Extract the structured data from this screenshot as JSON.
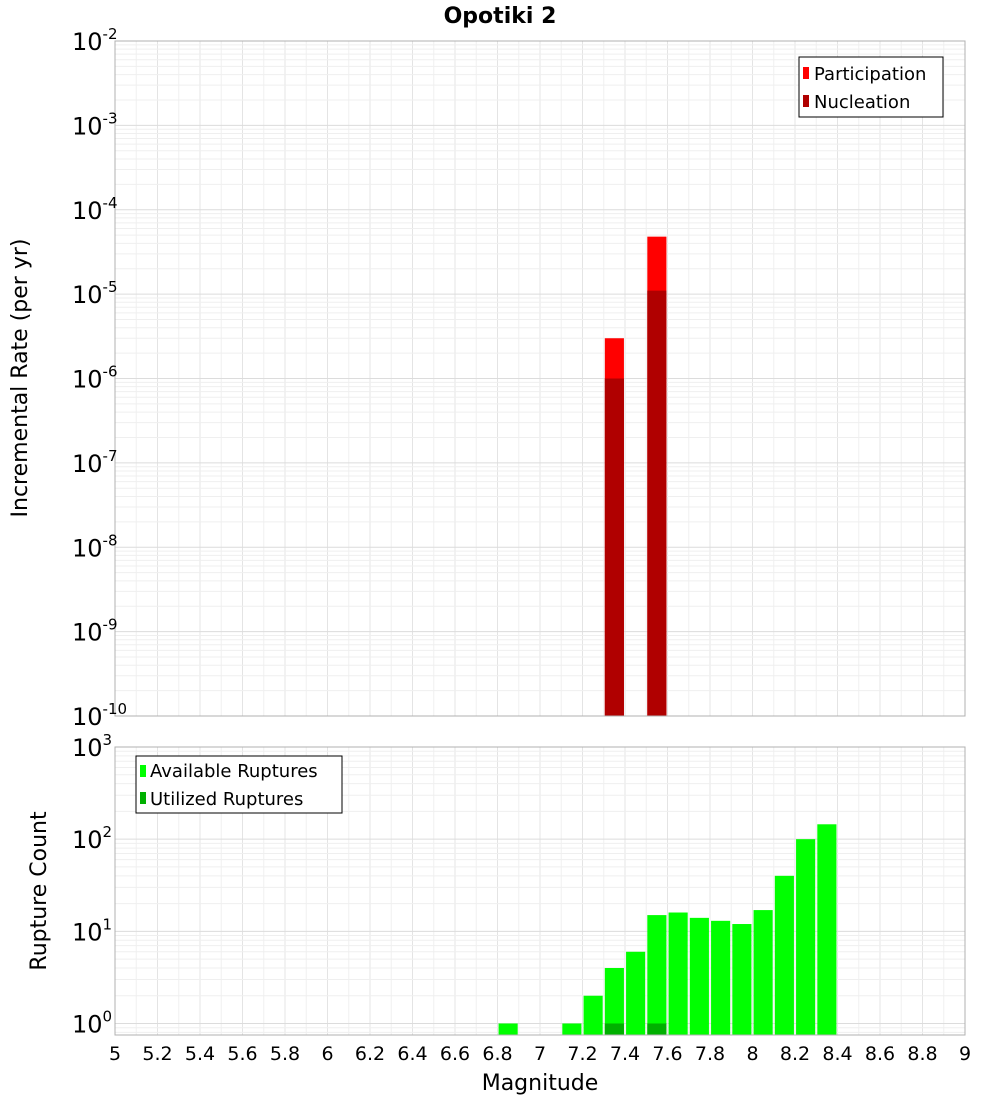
{
  "chart_data": [
    {
      "type": "bar",
      "title": "Opotiki 2",
      "xlabel": "",
      "ylabel": "Incremental Rate (per yr)",
      "yscale": "log",
      "ylim": [
        1e-10,
        0.01
      ],
      "xlim": [
        5,
        9
      ],
      "ytick_exponents": [
        "-10",
        "-9",
        "-8",
        "-7",
        "-6",
        "-5",
        "-4",
        "-3",
        "-2"
      ],
      "ytick_base": "10",
      "grid": true,
      "legend_position": "top-right",
      "bar_width": 0.09,
      "series": [
        {
          "name": "Participation",
          "color": "#ff0000",
          "x": [
            7.35,
            7.55
          ],
          "values": [
            3e-06,
            4.8e-05
          ]
        },
        {
          "name": "Nucleation",
          "color": "#b00000",
          "x": [
            7.35,
            7.55
          ],
          "values": [
            1e-06,
            1.1e-05
          ]
        }
      ]
    },
    {
      "type": "bar",
      "title": "",
      "xlabel": "Magnitude",
      "ylabel": "Rupture Count",
      "yscale": "log",
      "ylim": [
        0.75,
        1000
      ],
      "xlim": [
        5,
        9
      ],
      "ytick_exponents": [
        "0",
        "1",
        "2",
        "3"
      ],
      "ytick_base": "10",
      "grid": true,
      "legend_position": "top-left",
      "bar_width": 0.09,
      "xticks": [
        "5",
        "5.2",
        "5.4",
        "5.6",
        "5.8",
        "6",
        "6.2",
        "6.4",
        "6.6",
        "6.8",
        "7",
        "7.2",
        "7.4",
        "7.6",
        "7.8",
        "8",
        "8.2",
        "8.4",
        "8.6",
        "8.8",
        "9"
      ],
      "series": [
        {
          "name": "Available Ruptures",
          "color": "#00ff00",
          "x": [
            6.85,
            7.15,
            7.25,
            7.35,
            7.45,
            7.55,
            7.65,
            7.75,
            7.85,
            7.95,
            8.05,
            8.15,
            8.25,
            8.35
          ],
          "values": [
            1,
            1,
            2,
            4,
            6,
            15,
            16,
            14,
            13,
            12,
            17,
            40,
            100,
            145
          ]
        },
        {
          "name": "Utilized Ruptures",
          "color": "#00b000",
          "x": [
            7.35,
            7.55
          ],
          "values": [
            1,
            1
          ]
        }
      ]
    }
  ]
}
